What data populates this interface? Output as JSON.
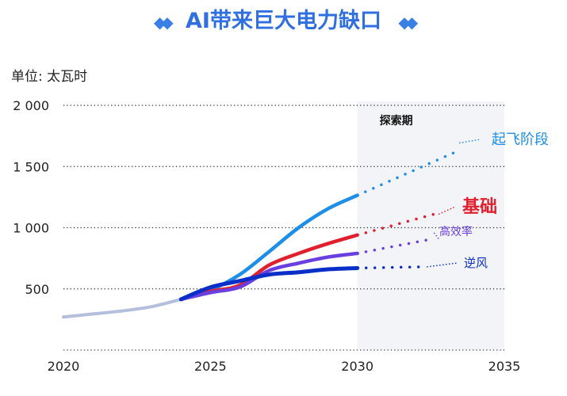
{
  "title": "AI带来巨大电力缺口",
  "unit_label": "单位: 太瓦时",
  "chart_data": {
    "type": "line",
    "title": "AI带来巨大电力缺口",
    "ylabel": "单位: 太瓦时",
    "xlim": [
      2020,
      2035
    ],
    "ylim": [
      0,
      2000
    ],
    "x_ticks": [
      "2020",
      "2025",
      "2030",
      "2035"
    ],
    "y_ticks": [
      "500",
      "1 000",
      "1 500",
      "2 000"
    ],
    "y_tick_values": [
      500,
      1000,
      1500,
      2000
    ],
    "grid": "horizontal dotted",
    "shaded_region": {
      "label": "探索期",
      "x": [
        2030,
        2035
      ]
    },
    "history": {
      "x": [
        2020,
        2021,
        2022,
        2023,
        2024
      ],
      "values": [
        270,
        295,
        320,
        355,
        415
      ],
      "color": "#b4bfdc"
    },
    "series": [
      {
        "name": "起飞阶段",
        "color": "#1e8fe8",
        "x": [
          2024,
          2025,
          2026,
          2027,
          2028,
          2029,
          2030
        ],
        "values": [
          415,
          490,
          617,
          805,
          1000,
          1155,
          1265
        ],
        "projection": {
          "x": [
            2030,
            2033.3
          ],
          "values": [
            1265,
            1615
          ]
        }
      },
      {
        "name": "基础",
        "color": "#e0202e",
        "x": [
          2024,
          2025,
          2026,
          2027,
          2028,
          2029,
          2030
        ],
        "values": [
          415,
          480,
          530,
          695,
          790,
          870,
          940
        ],
        "projection": {
          "x": [
            2030,
            2032.6
          ],
          "values": [
            940,
            1110
          ]
        }
      },
      {
        "name": "高效率",
        "color": "#6a3fe0",
        "x": [
          2024,
          2025,
          2026,
          2027,
          2028,
          2029,
          2030
        ],
        "values": [
          415,
          470,
          515,
          650,
          710,
          760,
          790
        ],
        "projection": {
          "x": [
            2030,
            2032.6
          ],
          "values": [
            790,
            910
          ]
        }
      },
      {
        "name": "逆风",
        "color": "#0a2fc8",
        "x": [
          2024,
          2025,
          2026,
          2027,
          2028,
          2029,
          2030
        ],
        "values": [
          415,
          513,
          565,
          617,
          636,
          660,
          670
        ],
        "projection": {
          "x": [
            2030,
            2032.2
          ],
          "values": [
            670,
            680
          ]
        }
      }
    ]
  }
}
